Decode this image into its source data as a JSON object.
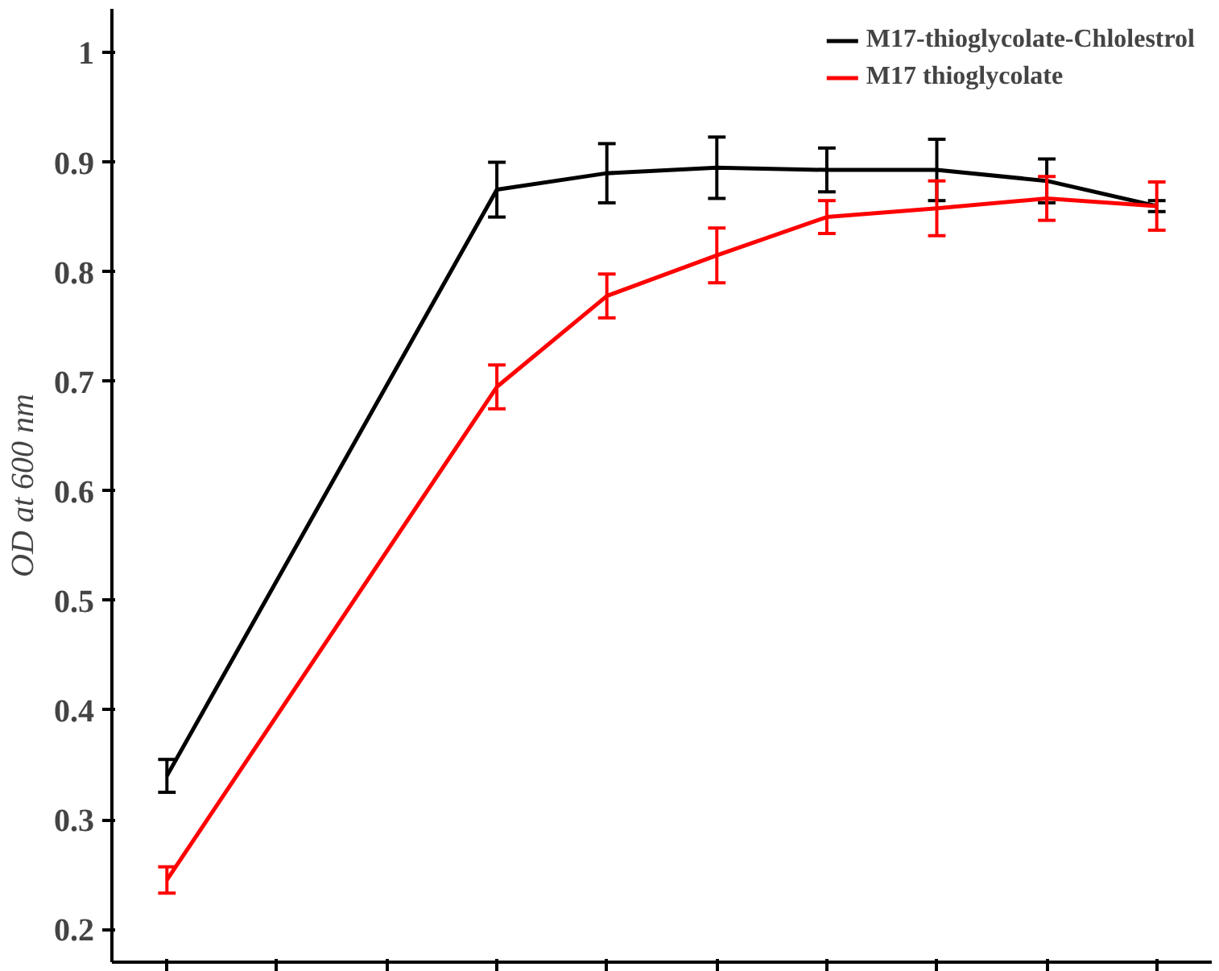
{
  "chart_data": {
    "type": "line",
    "ylabel": "OD at 600 nm",
    "categories": [
      null,
      null,
      null,
      null,
      null,
      null,
      null,
      null,
      null,
      null
    ],
    "series": [
      {
        "name": "M17-thioglycolate-Chlolestrol",
        "color": "#000000",
        "values": [
          0.34,
          null,
          null,
          0.875,
          0.89,
          0.895,
          0.893,
          0.893,
          0.883,
          0.86
        ],
        "errors": [
          0.015,
          null,
          null,
          0.025,
          0.027,
          0.028,
          0.02,
          0.028,
          0.02,
          0.005
        ]
      },
      {
        "name": "M17 thioglycolate",
        "color": "#ff0000",
        "values": [
          0.245,
          null,
          null,
          0.695,
          0.778,
          0.815,
          0.85,
          0.858,
          0.867,
          0.86
        ],
        "errors": [
          0.012,
          null,
          null,
          0.02,
          0.02,
          0.025,
          0.015,
          0.025,
          0.02,
          0.022
        ]
      }
    ],
    "ylim": [
      0.17,
      1.04
    ],
    "yticks": [
      0.2,
      0.3,
      0.4,
      0.5,
      0.6,
      0.7,
      0.8,
      0.9,
      1.0
    ],
    "grid": false,
    "legend": "top right",
    "marker": "none",
    "line_style": "solid"
  }
}
